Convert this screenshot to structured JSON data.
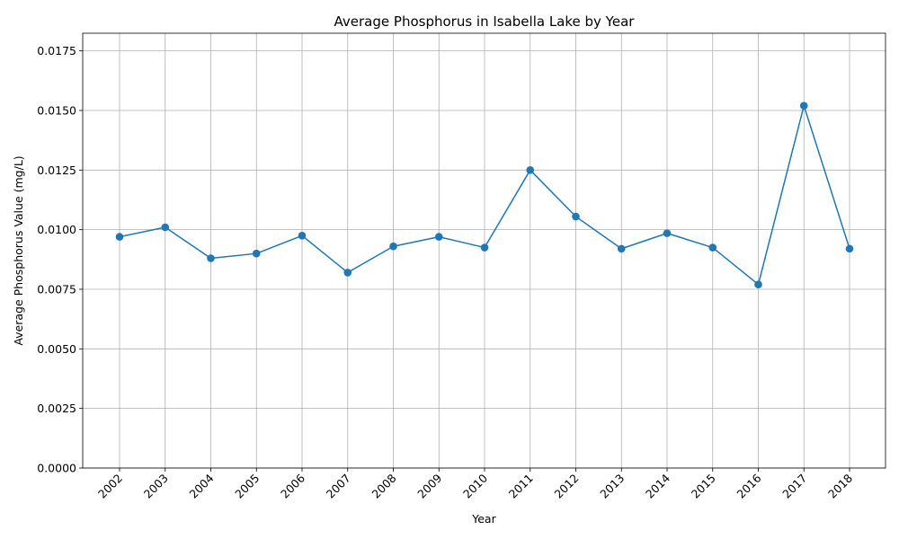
{
  "chart_data": {
    "type": "line",
    "title": "Average Phosphorus in Isabella Lake by Year",
    "xlabel": "Year",
    "ylabel": "Average Phosphorus Value (mg/L)",
    "categories": [
      "2002",
      "2003",
      "2004",
      "2005",
      "2006",
      "2007",
      "2008",
      "2009",
      "2010",
      "2011",
      "2012",
      "2013",
      "2014",
      "2015",
      "2016",
      "2017",
      "2018"
    ],
    "series": [
      {
        "values": [
          0.0097,
          0.0101,
          0.0088,
          0.009,
          0.00975,
          0.0082,
          0.0093,
          0.0097,
          0.00925,
          0.0125,
          0.01055,
          0.0092,
          0.00985,
          0.00925,
          0.0077,
          0.0152,
          0.0092
        ],
        "color": "#1f77b4",
        "marker": "circle"
      }
    ],
    "ylim": [
      0,
      0.01824
    ],
    "yticks": [
      "0.0000",
      "0.0025",
      "0.0050",
      "0.0075",
      "0.0100",
      "0.0125",
      "0.0150",
      "0.0175"
    ],
    "ytick_values": [
      0,
      0.0025,
      0.005,
      0.0075,
      0.01,
      0.0125,
      0.015,
      0.0175
    ],
    "grid": true,
    "x_tick_rotation": 45
  }
}
